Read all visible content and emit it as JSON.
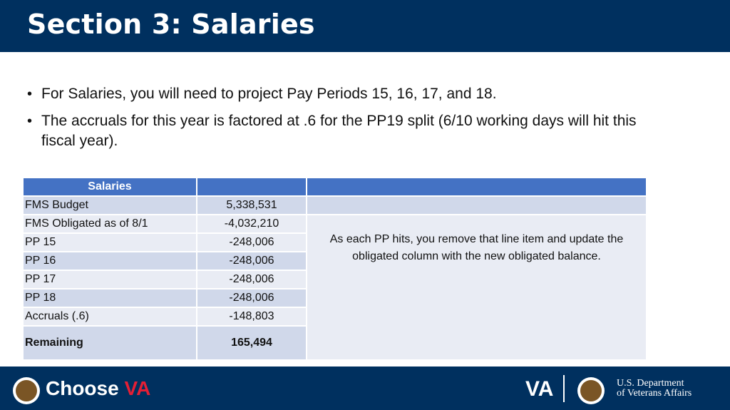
{
  "slide": {
    "title": "Section 3: Salaries"
  },
  "bullets": [
    "For Salaries, you will need to project Pay Periods 15, 16, 17, and 18.",
    "The accruals for this year is factored at .6 for the PP19 split (6/10 working days will hit this fiscal year)."
  ],
  "table": {
    "headers": [
      "Salaries",
      "",
      ""
    ],
    "rows": [
      {
        "label": "FMS Budget",
        "value": "5,338,531"
      },
      {
        "label": "FMS Obligated as of 8/1",
        "value": "-4,032,210"
      },
      {
        "label": "PP 15",
        "value": "-248,006"
      },
      {
        "label": "PP 16",
        "value": "-248,006"
      },
      {
        "label": "PP 17",
        "value": "-248,006"
      },
      {
        "label": "PP 18",
        "value": "-248,006"
      },
      {
        "label": "Accruals (.6)",
        "value": "-148,803"
      },
      {
        "label": "Remaining",
        "value": "165,494"
      }
    ],
    "note": "As each PP hits, you remove that line item and update the obligated column with the new obligated balance."
  },
  "footer": {
    "brand_prefix": "Choose ",
    "brand_accent": "VA",
    "va_mark": "VA",
    "dept_line1": "U.S. Department",
    "dept_line2": "of Veterans Affairs"
  },
  "colors": {
    "header_bg": "#00305f",
    "table_header": "#4472c4",
    "row_dark": "#d0d8ea",
    "row_light": "#e9ecf4",
    "accent": "#e41f35"
  }
}
